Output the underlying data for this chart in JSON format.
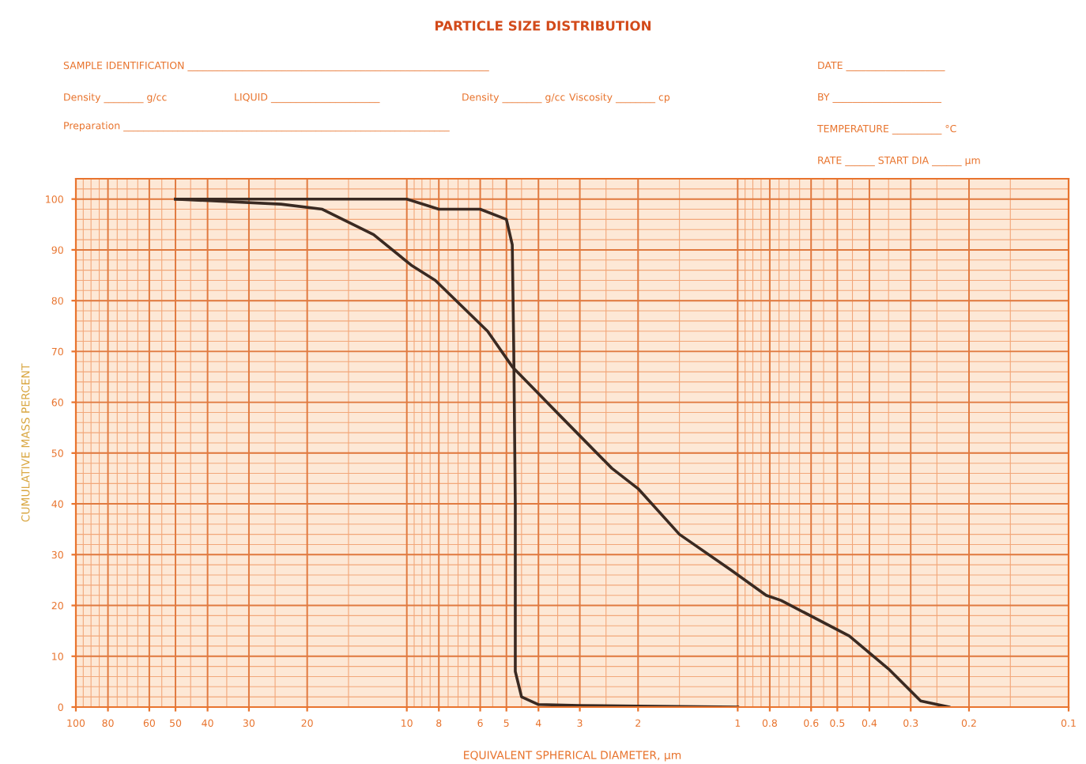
{
  "chart_data": {
    "type": "line",
    "title": "PARTICLE SIZE DISTRIBUTION",
    "xlabel": "EQUIVALENT SPHERICAL DIAMETER, μm",
    "ylabel": "CUMULATIVE MASS PERCENT",
    "log": "x",
    "grid": true,
    "marker": "none",
    "line_style": "solid",
    "xlim": [
      100,
      0.1
    ],
    "ylim": [
      0,
      104
    ],
    "xticks": [
      100,
      80,
      60,
      50,
      40,
      30,
      20,
      10,
      8,
      6,
      5,
      4,
      3,
      2,
      1,
      0.8,
      0.6,
      0.5,
      0.4,
      0.3,
      0.2,
      0.1
    ],
    "yticks": [
      0,
      10,
      20,
      30,
      40,
      50,
      60,
      70,
      80,
      90,
      100
    ],
    "annotations": [
      "SAMPLE IDENTIFICATION _____________________________________________________________",
      "Density ________ g/cc",
      "LIQUID ______________________",
      "Density ________ g/cc",
      "Viscosity ________ cp",
      "Preparation __________________________________________________________________",
      "DATE ____________________",
      "BY ______________________",
      "TEMPERATURE __________ °C",
      "RATE ______ START DIA ______ μm"
    ],
    "series": [
      {
        "color": "#3a2a22",
        "x": [
          50,
          20,
          10,
          8,
          6,
          5,
          4.8,
          4.75,
          4.7,
          4.7,
          4.5,
          4.0,
          3,
          2,
          1
        ],
        "values": [
          100,
          100,
          100,
          98,
          98,
          96,
          91,
          70,
          40,
          7,
          2,
          0.5,
          0.3,
          0.2,
          0
        ]
      },
      {
        "color": "#3a2a22",
        "x": [
          50,
          24,
          18,
          12.6,
          9.7,
          8.2,
          5.7,
          4.8,
          3.4,
          2.4,
          2.0,
          1.5,
          1.05,
          0.82,
          0.74,
          0.46,
          0.35,
          0.28,
          0.23
        ],
        "values": [
          100,
          99,
          98,
          93,
          87,
          84,
          74,
          67,
          57,
          47,
          43,
          34,
          27,
          22,
          21,
          14,
          7.5,
          1.2,
          0
        ]
      }
    ]
  }
}
